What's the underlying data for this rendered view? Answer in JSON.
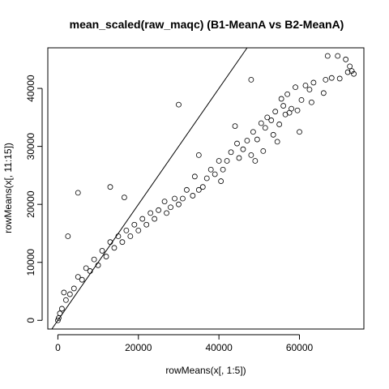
{
  "chart_data": {
    "type": "scatter",
    "title": "mean_scaled(raw_maqc) (B1-MeanA vs B2-MeanA)",
    "xlabel": "rowMeans(x[, 1:5])",
    "ylabel": "rowMeans(x[, 11:15])",
    "xlim": [
      -2500,
      76000
    ],
    "ylim": [
      -1500,
      47000
    ],
    "xticks": [
      0,
      20000,
      40000,
      60000
    ],
    "yticks": [
      0,
      10000,
      20000,
      30000,
      40000
    ],
    "xtick_labels": [
      "0",
      "20000",
      "40000",
      "60000"
    ],
    "ytick_labels": [
      "0",
      "10000",
      "20000",
      "30000",
      "40000"
    ],
    "grid": false,
    "legend": "none",
    "marker": "open-circle",
    "reference_line": {
      "slope": 1,
      "intercept": 0
    },
    "series": [
      {
        "points": [
          [
            67000,
            45600
          ],
          [
            69500,
            45600
          ],
          [
            71500,
            45000
          ],
          [
            72500,
            43800
          ],
          [
            73000,
            43000
          ],
          [
            73500,
            42500
          ],
          [
            72000,
            42800
          ],
          [
            68000,
            41800
          ],
          [
            66500,
            41500
          ],
          [
            70000,
            41700
          ],
          [
            63500,
            41000
          ],
          [
            61500,
            40500
          ],
          [
            59000,
            40200
          ],
          [
            62500,
            39800
          ],
          [
            66000,
            39200
          ],
          [
            57000,
            39000
          ],
          [
            60500,
            38000
          ],
          [
            63000,
            37600
          ],
          [
            55500,
            38200
          ],
          [
            56000,
            37000
          ],
          [
            58000,
            36500
          ],
          [
            59500,
            36200
          ],
          [
            54000,
            36000
          ],
          [
            52000,
            35000
          ],
          [
            56500,
            35500
          ],
          [
            53000,
            34500
          ],
          [
            50500,
            34000
          ],
          [
            51500,
            33200
          ],
          [
            55000,
            33800
          ],
          [
            57500,
            35800
          ],
          [
            48500,
            32500
          ],
          [
            49500,
            31200
          ],
          [
            53500,
            32000
          ],
          [
            54500,
            30800
          ],
          [
            47000,
            31000
          ],
          [
            46000,
            29500
          ],
          [
            48000,
            28500
          ],
          [
            51000,
            29200
          ],
          [
            44500,
            30500
          ],
          [
            45000,
            28000
          ],
          [
            43000,
            29000
          ],
          [
            42000,
            27500
          ],
          [
            49000,
            27500
          ],
          [
            41000,
            26000
          ],
          [
            40000,
            27500
          ],
          [
            39000,
            25200
          ],
          [
            38000,
            26000
          ],
          [
            40500,
            24000
          ],
          [
            37000,
            24500
          ],
          [
            36000,
            23000
          ],
          [
            35000,
            22500
          ],
          [
            34000,
            24800
          ],
          [
            33500,
            21500
          ],
          [
            32000,
            22500
          ],
          [
            31000,
            21000
          ],
          [
            30000,
            20000
          ],
          [
            29000,
            21000
          ],
          [
            28000,
            19500
          ],
          [
            27000,
            18500
          ],
          [
            26500,
            20500
          ],
          [
            25000,
            19000
          ],
          [
            24000,
            17500
          ],
          [
            23000,
            18500
          ],
          [
            22000,
            16500
          ],
          [
            21000,
            17500
          ],
          [
            20000,
            15500
          ],
          [
            19000,
            16500
          ],
          [
            18000,
            14500
          ],
          [
            17000,
            15500
          ],
          [
            16000,
            13500
          ],
          [
            15000,
            14500
          ],
          [
            14000,
            12500
          ],
          [
            13000,
            13500
          ],
          [
            12000,
            11000
          ],
          [
            11000,
            12000
          ],
          [
            10000,
            9500
          ],
          [
            9000,
            10500
          ],
          [
            8000,
            8500
          ],
          [
            7000,
            9000
          ],
          [
            6000,
            7000
          ],
          [
            5000,
            7500
          ],
          [
            4000,
            5500
          ],
          [
            3000,
            4500
          ],
          [
            2000,
            3500
          ],
          [
            1000,
            2000
          ],
          [
            500,
            1200
          ],
          [
            200,
            400
          ],
          [
            0,
            0
          ],
          [
            30000,
            37200
          ],
          [
            5000,
            22000
          ],
          [
            13000,
            23000
          ],
          [
            16500,
            21200
          ],
          [
            2500,
            14500
          ],
          [
            1500,
            4800
          ],
          [
            48000,
            41500
          ],
          [
            60000,
            32500
          ],
          [
            44000,
            33500
          ],
          [
            35000,
            28500
          ]
        ]
      }
    ]
  }
}
